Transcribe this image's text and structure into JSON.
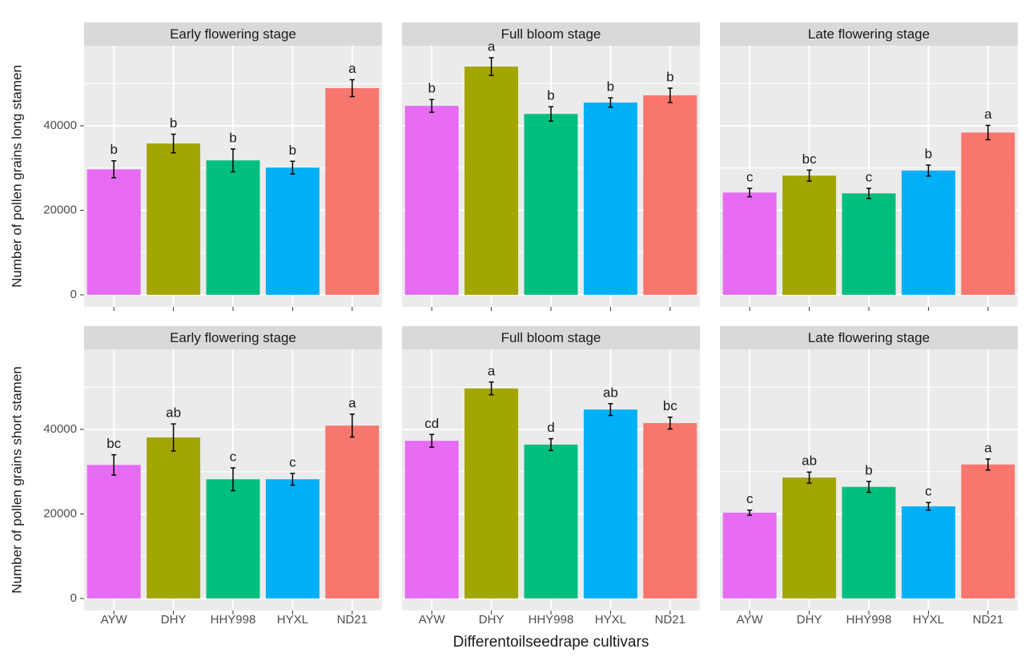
{
  "chart_data": [
    {
      "type": "bar",
      "title": "Early flowering stage",
      "ylabel": "Number of pollen grains long stamen",
      "values": [
        29700,
        35800,
        31800,
        30100,
        48900
      ],
      "errors": [
        2000,
        2200,
        2700,
        1500,
        2000
      ],
      "letters": [
        "b",
        "b",
        "b",
        "b",
        "a"
      ],
      "colors": [
        "#e76bf3",
        "#a3a500",
        "#00bf7d",
        "#00b0f6",
        "#f8766d"
      ],
      "ylim": [
        -2850,
        58950
      ],
      "yticks": [
        0,
        20000,
        40000
      ],
      "minor_yticks": [
        10000,
        30000,
        50000
      ],
      "ytick_labels": true
    },
    {
      "type": "bar",
      "title": "Full bloom stage",
      "values": [
        44700,
        54000,
        42800,
        45500,
        47200
      ],
      "errors": [
        1500,
        2100,
        1700,
        1100,
        1700
      ],
      "letters": [
        "b",
        "a",
        "b",
        "b",
        "b"
      ],
      "colors": [
        "#e76bf3",
        "#a3a500",
        "#00bf7d",
        "#00b0f6",
        "#f8766d"
      ],
      "ylim": [
        -2850,
        58950
      ],
      "yticks": [
        0,
        20000,
        40000
      ],
      "minor_yticks": [
        10000,
        30000,
        50000
      ],
      "ytick_labels": false
    },
    {
      "type": "bar",
      "title": "Late flowering stage",
      "values": [
        24200,
        28200,
        24000,
        29400,
        38400
      ],
      "errors": [
        1000,
        1300,
        1200,
        1300,
        1700
      ],
      "letters": [
        "c",
        "bc",
        "c",
        "b",
        "a"
      ],
      "colors": [
        "#e76bf3",
        "#a3a500",
        "#00bf7d",
        "#00b0f6",
        "#f8766d"
      ],
      "ylim": [
        -2850,
        58950
      ],
      "yticks": [
        0,
        20000,
        40000
      ],
      "minor_yticks": [
        10000,
        30000,
        50000
      ],
      "ytick_labels": false
    },
    {
      "type": "bar",
      "title": "Early flowering stage",
      "ylabel": "Number of pollen grains short stamen",
      "categories": [
        "AYW",
        "DHY",
        "HHY998",
        "HYXL",
        "ND21"
      ],
      "values": [
        31600,
        38100,
        28200,
        28200,
        40900
      ],
      "errors": [
        2400,
        3200,
        2700,
        1400,
        2700
      ],
      "letters": [
        "bc",
        "ab",
        "c",
        "c",
        "a"
      ],
      "colors": [
        "#e76bf3",
        "#a3a500",
        "#00bf7d",
        "#00b0f6",
        "#f8766d"
      ],
      "ylim": [
        -2850,
        58950
      ],
      "yticks": [
        0,
        20000,
        40000
      ],
      "minor_yticks": [
        10000,
        30000,
        50000
      ],
      "ytick_labels": true
    },
    {
      "type": "bar",
      "title": "Full bloom stage",
      "xlabel": "Differentoilseedrape cultivars",
      "categories": [
        "AYW",
        "DHY",
        "HHY998",
        "HYXL",
        "ND21"
      ],
      "values": [
        37300,
        49700,
        36400,
        44700,
        41500
      ],
      "errors": [
        1500,
        1500,
        1400,
        1400,
        1400
      ],
      "letters": [
        "cd",
        "a",
        "d",
        "ab",
        "bc"
      ],
      "colors": [
        "#e76bf3",
        "#a3a500",
        "#00bf7d",
        "#00b0f6",
        "#f8766d"
      ],
      "ylim": [
        -2850,
        58950
      ],
      "yticks": [
        0,
        20000,
        40000
      ],
      "minor_yticks": [
        10000,
        30000,
        50000
      ],
      "ytick_labels": false
    },
    {
      "type": "bar",
      "title": "Late flowering stage",
      "categories": [
        "AYW",
        "DHY",
        "HHY998",
        "HYXL",
        "ND21"
      ],
      "values": [
        20300,
        28600,
        26400,
        21800,
        31700
      ],
      "errors": [
        600,
        1300,
        1300,
        900,
        1300
      ],
      "letters": [
        "c",
        "ab",
        "b",
        "c",
        "a"
      ],
      "colors": [
        "#e76bf3",
        "#a3a500",
        "#00bf7d",
        "#00b0f6",
        "#f8766d"
      ],
      "ylim": [
        -2850,
        58950
      ],
      "yticks": [
        0,
        20000,
        40000
      ],
      "minor_yticks": [
        10000,
        30000,
        50000
      ],
      "ytick_labels": false
    }
  ]
}
